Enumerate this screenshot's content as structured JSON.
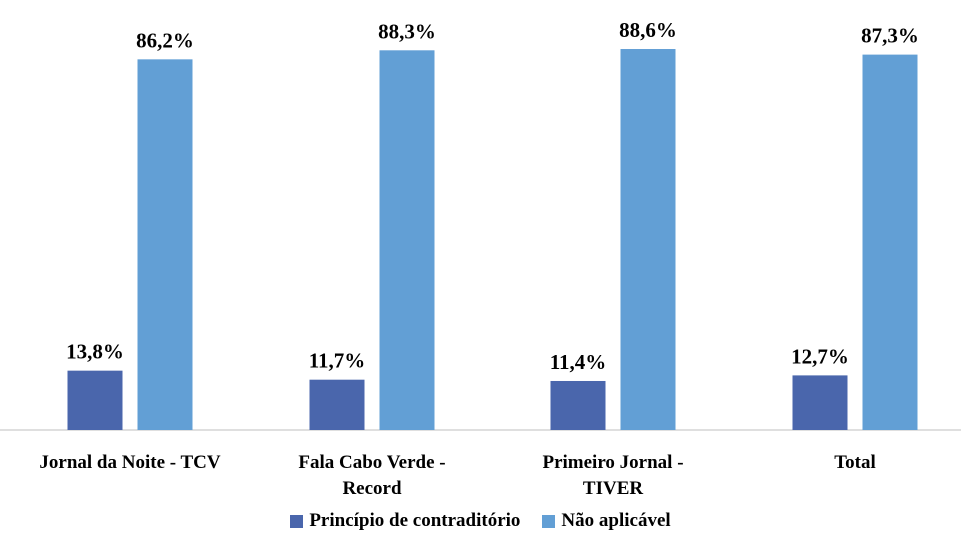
{
  "chart_data": {
    "type": "bar",
    "categories": [
      [
        "Jornal da Noite - TCV"
      ],
      [
        "Fala Cabo Verde -",
        "Record"
      ],
      [
        "Primeiro Jornal -",
        "TIVER"
      ],
      [
        "Total"
      ]
    ],
    "series": [
      {
        "name": "Princípio de contraditório",
        "color": "#4a66ac",
        "values": [
          13.8,
          11.7,
          11.4,
          12.7
        ],
        "labels": [
          "13,8%",
          "11,7%",
          "11,4%",
          "12,7%"
        ]
      },
      {
        "name": "Não aplicável",
        "color": "#629fd5",
        "values": [
          86.2,
          88.3,
          88.6,
          87.3
        ],
        "labels": [
          "86,2%",
          "88,3%",
          "88,6%",
          "87,3%"
        ]
      }
    ],
    "ylim": [
      0,
      100
    ],
    "grid": false,
    "legend_position": "bottom"
  }
}
